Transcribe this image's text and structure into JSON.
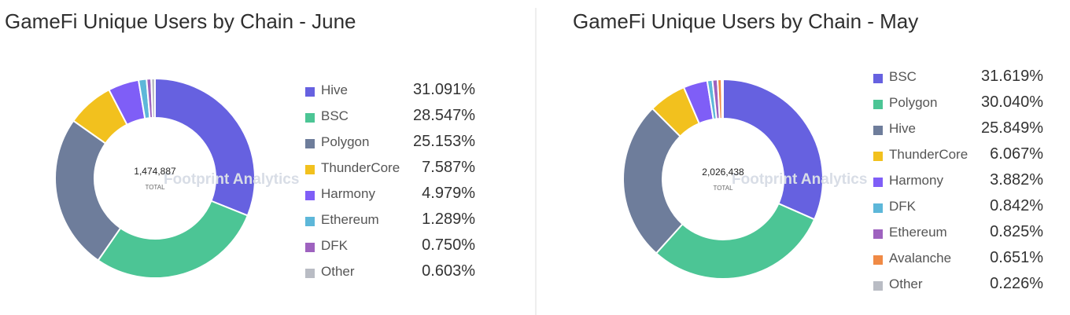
{
  "chart_data": [
    {
      "type": "pie",
      "variant": "donut",
      "title": "GameFi Unique Users by Chain - June",
      "total": "1,474,887",
      "total_label": "TOTAL",
      "watermark": "Footprint Analytics",
      "legend_position": "right",
      "slices": [
        {
          "name": "Hive",
          "value": 31.091,
          "label": "31.091%",
          "color": "#6661E0"
        },
        {
          "name": "BSC",
          "value": 28.547,
          "label": "28.547%",
          "color": "#4CC595"
        },
        {
          "name": "Polygon",
          "value": 25.153,
          "label": "25.153%",
          "color": "#6E7D9B"
        },
        {
          "name": "ThunderCore",
          "value": 7.587,
          "label": "7.587%",
          "color": "#F2C11E"
        },
        {
          "name": "Harmony",
          "value": 4.979,
          "label": "4.979%",
          "color": "#7F5EF7"
        },
        {
          "name": "Ethereum",
          "value": 1.289,
          "label": "1.289%",
          "color": "#5DB7D9"
        },
        {
          "name": "DFK",
          "value": 0.75,
          "label": "0.750%",
          "color": "#9E62BF"
        },
        {
          "name": "Other",
          "value": 0.603,
          "label": "0.603%",
          "color": "#B9BCC4"
        }
      ]
    },
    {
      "type": "pie",
      "variant": "donut",
      "title": "GameFi Unique Users by Chain - May",
      "total": "2,026,438",
      "total_label": "TOTAL",
      "watermark": "Footprint Analytics",
      "legend_position": "right",
      "slices": [
        {
          "name": "BSC",
          "value": 31.619,
          "label": "31.619%",
          "color": "#6661E0"
        },
        {
          "name": "Polygon",
          "value": 30.04,
          "label": "30.040%",
          "color": "#4CC595"
        },
        {
          "name": "Hive",
          "value": 25.849,
          "label": "25.849%",
          "color": "#6E7D9B"
        },
        {
          "name": "ThunderCore",
          "value": 6.067,
          "label": "6.067%",
          "color": "#F2C11E"
        },
        {
          "name": "Harmony",
          "value": 3.882,
          "label": "3.882%",
          "color": "#7F5EF7"
        },
        {
          "name": "DFK",
          "value": 0.842,
          "label": "0.842%",
          "color": "#5DB7D9"
        },
        {
          "name": "Ethereum",
          "value": 0.825,
          "label": "0.825%",
          "color": "#9E62BF"
        },
        {
          "name": "Avalanche",
          "value": 0.651,
          "label": "0.651%",
          "color": "#F08A45"
        },
        {
          "name": "Other",
          "value": 0.226,
          "label": "0.226%",
          "color": "#B9BCC4"
        }
      ]
    }
  ]
}
